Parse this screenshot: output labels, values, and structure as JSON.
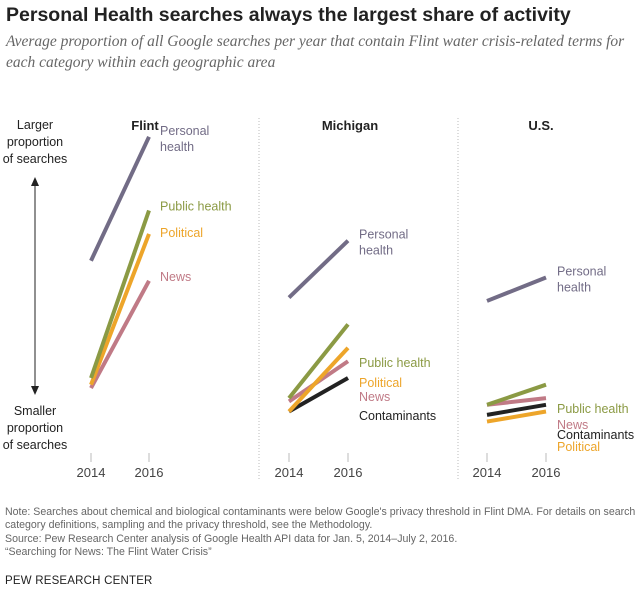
{
  "title": "Personal Health searches always the largest share of activity",
  "subtitle": "Average proportion of all Google searches per year that contain Flint water crisis-related terms for each category within each geographic area",
  "axis_note": {
    "top_lines": [
      "Larger",
      "proportion",
      "of searches"
    ],
    "bottom_lines": [
      "Smaller",
      "proportion",
      "of searches"
    ]
  },
  "chart_data": [
    {
      "type": "line",
      "title": "Flint",
      "x": [
        "2014",
        "2016"
      ],
      "series": [
        {
          "name": "Personal health",
          "label_lines": [
            "Personal",
            "health"
          ],
          "values": [
            55,
            92
          ],
          "color": "#726c86"
        },
        {
          "name": "Public health",
          "label_lines": [
            "Public health"
          ],
          "values": [
            20,
            70
          ],
          "color": "#8b9a44"
        },
        {
          "name": "Political",
          "label_lines": [
            "Political"
          ],
          "values": [
            18,
            63
          ],
          "color": "#eda52a"
        },
        {
          "name": "News",
          "label_lines": [
            "News"
          ],
          "values": [
            17,
            49
          ],
          "color": "#c07a86"
        }
      ]
    },
    {
      "type": "line",
      "title": "Michigan",
      "x": [
        "2014",
        "2016"
      ],
      "series": [
        {
          "name": "Personal health",
          "label_lines": [
            "Personal",
            "health"
          ],
          "values": [
            44,
            61
          ],
          "color": "#726c86"
        },
        {
          "name": "Public health",
          "label_lines": [
            "Public health"
          ],
          "values": [
            14,
            36
          ],
          "color": "#8b9a44"
        },
        {
          "name": "Political",
          "label_lines": [
            "Political"
          ],
          "values": [
            10,
            29
          ],
          "color": "#eda52a"
        },
        {
          "name": "News",
          "label_lines": [
            "News"
          ],
          "values": [
            13,
            25
          ],
          "color": "#c07a86"
        },
        {
          "name": "Contaminants",
          "label_lines": [
            "Contaminants"
          ],
          "values": [
            10,
            20
          ],
          "color": "#222222"
        }
      ]
    },
    {
      "type": "line",
      "title": "U.S.",
      "x": [
        "2014",
        "2016"
      ],
      "series": [
        {
          "name": "Personal health",
          "label_lines": [
            "Personal",
            "health"
          ],
          "values": [
            43,
            50
          ],
          "color": "#726c86"
        },
        {
          "name": "Public health",
          "label_lines": [
            "Public health"
          ],
          "values": [
            12,
            18
          ],
          "color": "#8b9a44"
        },
        {
          "name": "News",
          "label_lines": [
            "News"
          ],
          "values": [
            12,
            14
          ],
          "color": "#c07a86"
        },
        {
          "name": "Contaminants",
          "label_lines": [
            "Contaminants"
          ],
          "values": [
            9,
            12
          ],
          "color": "#222222"
        },
        {
          "name": "Political",
          "label_lines": [
            "Political"
          ],
          "values": [
            7,
            10
          ],
          "color": "#eda52a"
        }
      ]
    }
  ],
  "notes": [
    "Note: Searches about chemical and biological contaminants were below Google's privacy threshold in Flint DMA. For details on search category definitions, sampling and the privacy threshold, see the Methodology.",
    "Source: Pew Research Center analysis of Google Health API data for Jan. 5, 2014–July 2, 2016.",
    "“Searching for News: The Flint Water Crisis”"
  ],
  "brand": "PEW RESEARCH CENTER"
}
